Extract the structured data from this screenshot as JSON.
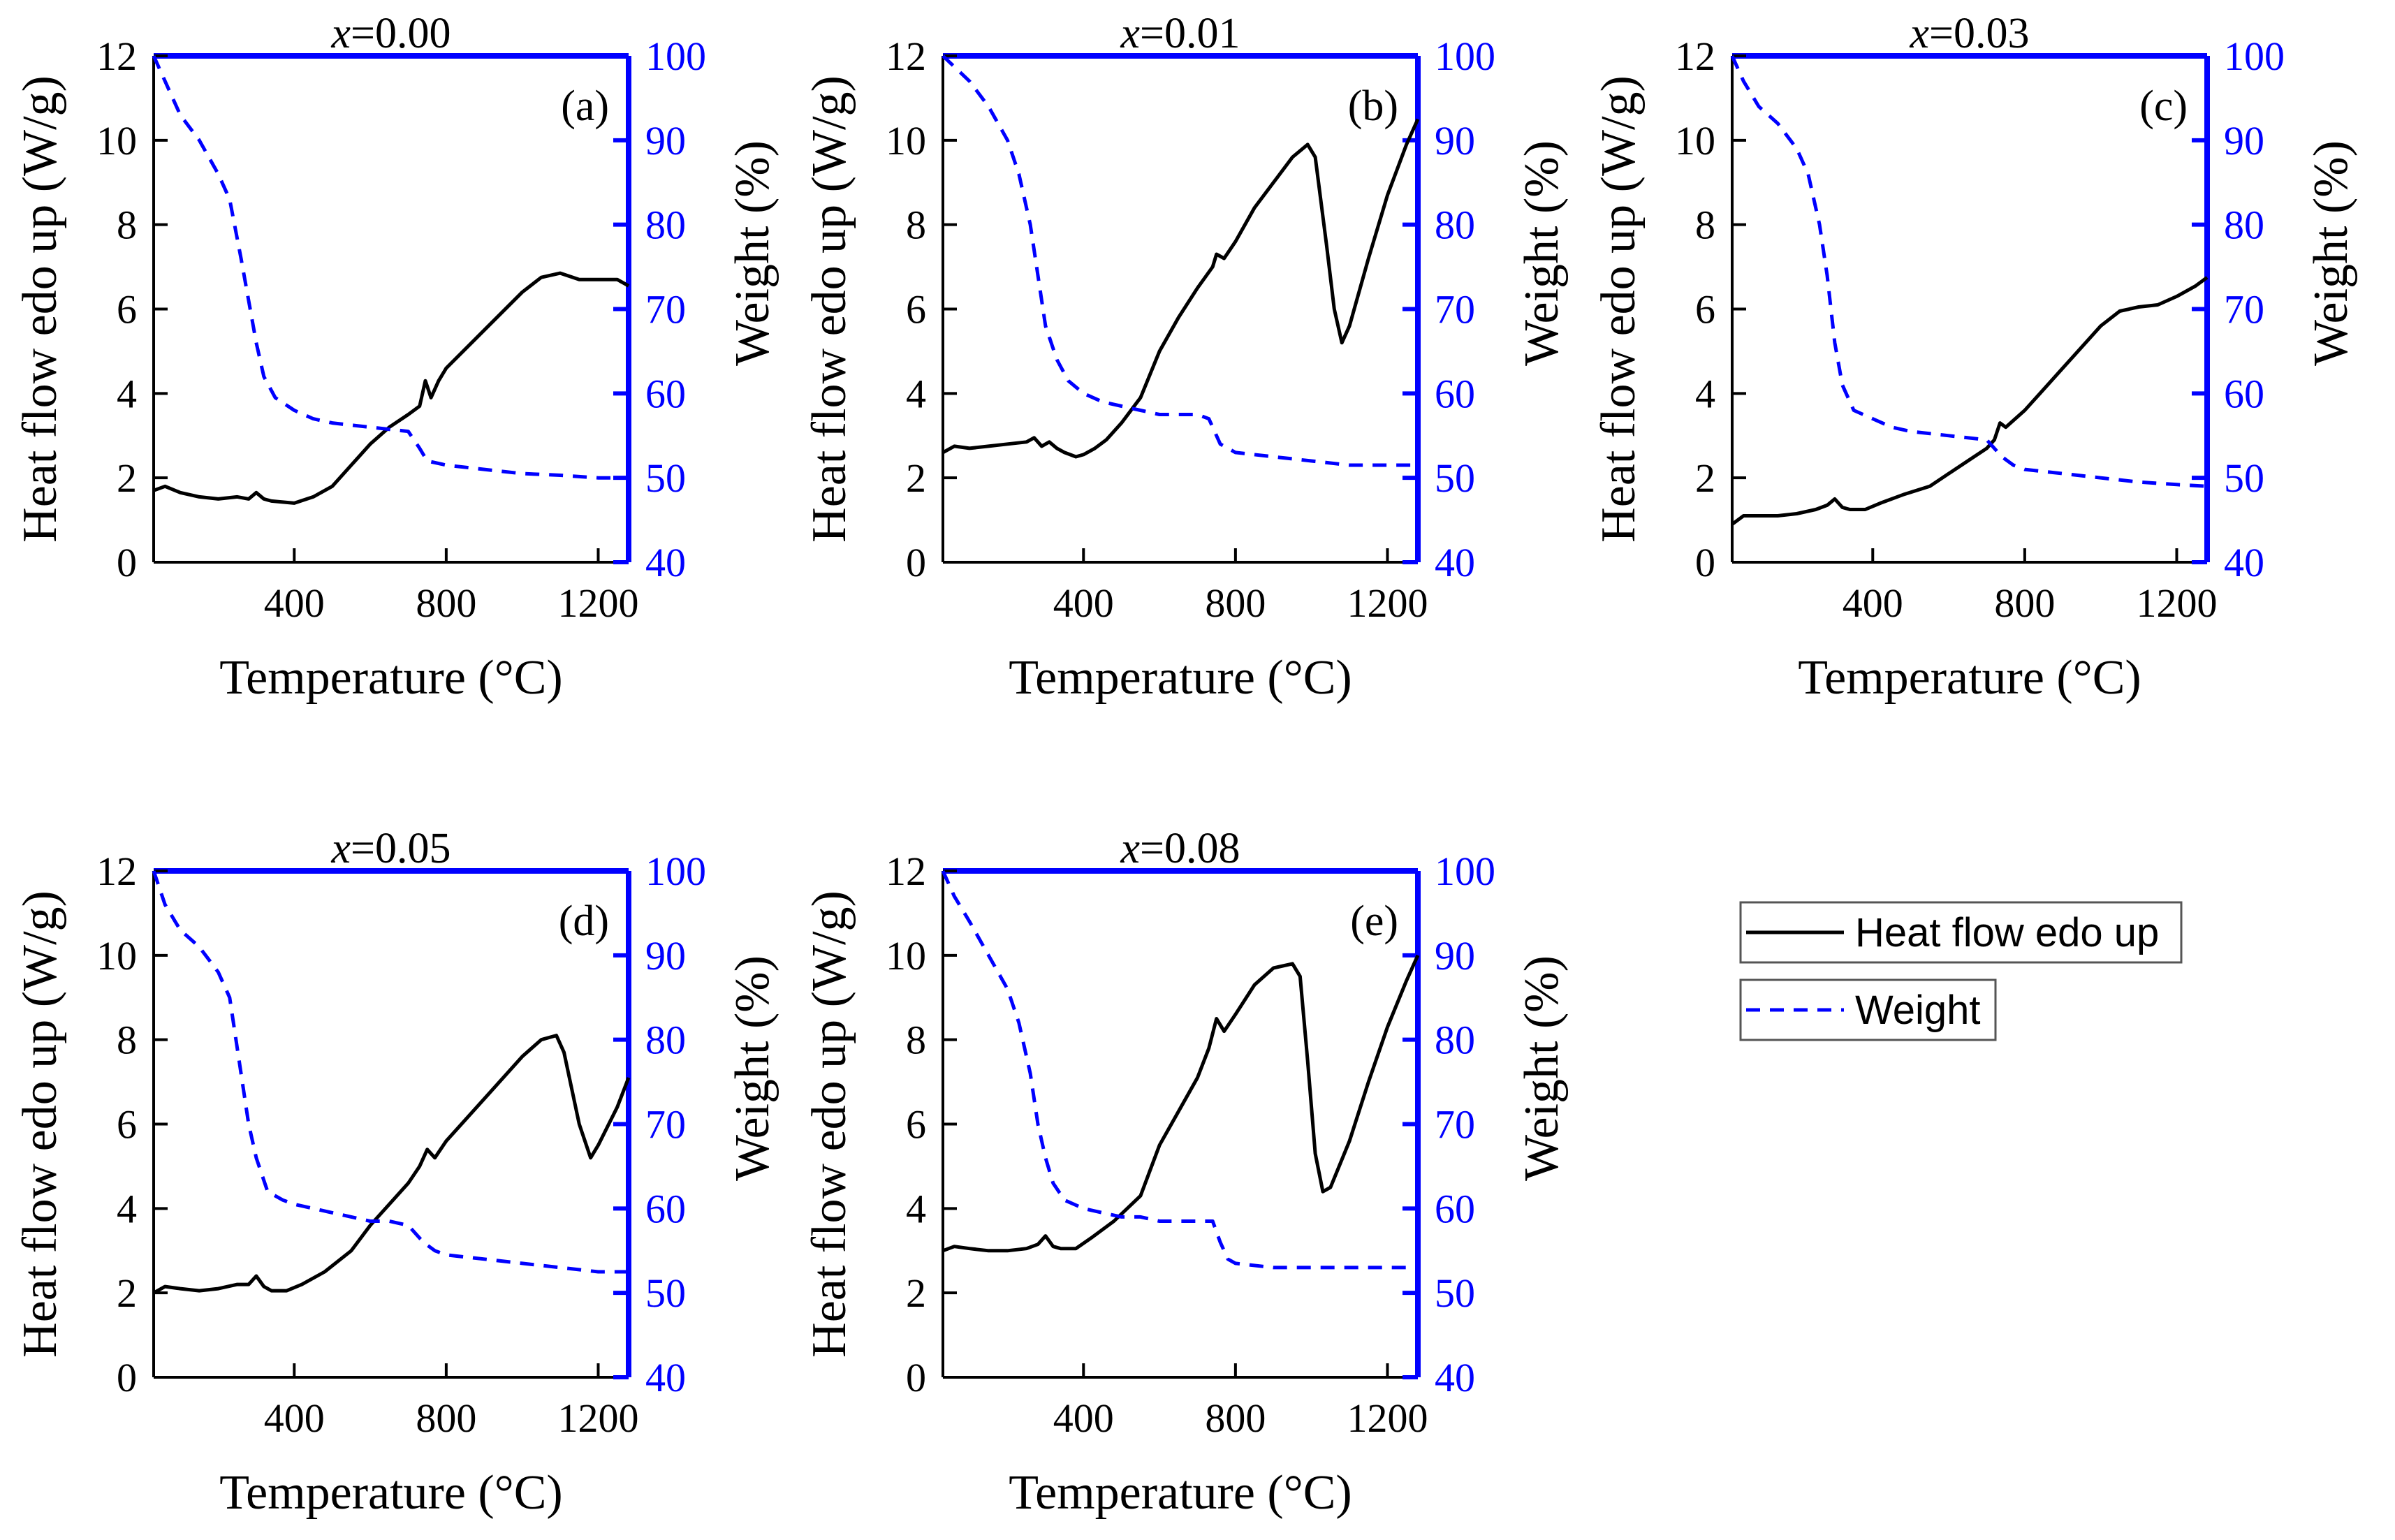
{
  "colors": {
    "heat": "#000000",
    "weight": "#0000ff",
    "background": "#ffffff"
  },
  "legend": {
    "heat_label": "Heat flow edo up",
    "weight_label": "Weight",
    "position": "right, beside lower row"
  },
  "chart_data": [
    {
      "type": "line",
      "panel_label": "(a)",
      "title": "x=0.00",
      "title_var": "x",
      "title_value": "=0.00",
      "xlabel": "Temperature (°C)",
      "ylabel_left": "Heat flow edo up (W/g)",
      "ylabel_right": "Weight (%)",
      "xlim": [
        30,
        1280
      ],
      "ylim_left": [
        0,
        12
      ],
      "ylim_right": [
        40,
        100
      ],
      "x_ticks": [
        400,
        800,
        1200
      ],
      "y_ticks_left": [
        0,
        2,
        4,
        6,
        8,
        10,
        12
      ],
      "y_ticks_right": [
        40,
        50,
        60,
        70,
        80,
        90,
        100
      ],
      "series": [
        {
          "name": "Heat flow edo up",
          "axis": "left",
          "style": "solid",
          "x": [
            30,
            60,
            100,
            150,
            200,
            250,
            280,
            300,
            320,
            340,
            400,
            450,
            500,
            550,
            600,
            650,
            700,
            730,
            745,
            760,
            780,
            800,
            900,
            1000,
            1050,
            1100,
            1150,
            1200,
            1250,
            1280
          ],
          "y": [
            1.7,
            1.8,
            1.65,
            1.55,
            1.5,
            1.55,
            1.5,
            1.65,
            1.5,
            1.45,
            1.4,
            1.55,
            1.8,
            2.3,
            2.8,
            3.2,
            3.5,
            3.7,
            4.3,
            3.9,
            4.3,
            4.6,
            5.5,
            6.4,
            6.75,
            6.85,
            6.7,
            6.7,
            6.7,
            6.55
          ]
        },
        {
          "name": "Weight",
          "axis": "right",
          "style": "dashed",
          "x": [
            30,
            100,
            150,
            200,
            230,
            260,
            280,
            300,
            320,
            350,
            400,
            450,
            500,
            600,
            700,
            730,
            750,
            800,
            900,
            1000,
            1100,
            1200,
            1280
          ],
          "y": [
            100,
            93,
            90,
            86,
            83,
            76,
            71,
            66,
            62,
            59.5,
            58,
            57,
            56.5,
            56,
            55.5,
            53.5,
            52,
            51.5,
            51,
            50.5,
            50.3,
            50,
            50
          ]
        }
      ]
    },
    {
      "type": "line",
      "panel_label": "(b)",
      "title": "x=0.01",
      "title_var": "x",
      "title_value": "=0.01",
      "xlabel": "Temperature (°C)",
      "ylabel_left": "Heat flow edo up (W/g)",
      "ylabel_right": "Weight (%)",
      "xlim": [
        30,
        1280
      ],
      "ylim_left": [
        0,
        12
      ],
      "ylim_right": [
        40,
        100
      ],
      "x_ticks": [
        400,
        800,
        1200
      ],
      "y_ticks_left": [
        0,
        2,
        4,
        6,
        8,
        10,
        12
      ],
      "y_ticks_right": [
        40,
        50,
        60,
        70,
        80,
        90,
        100
      ],
      "series": [
        {
          "name": "Heat flow edo up",
          "axis": "left",
          "style": "solid",
          "x": [
            30,
            60,
            100,
            150,
            200,
            250,
            270,
            290,
            310,
            330,
            350,
            380,
            400,
            430,
            460,
            500,
            550,
            600,
            650,
            700,
            740,
            750,
            770,
            800,
            850,
            900,
            950,
            990,
            1010,
            1040,
            1060,
            1080,
            1100,
            1150,
            1200,
            1250,
            1280
          ],
          "y": [
            2.6,
            2.75,
            2.7,
            2.75,
            2.8,
            2.85,
            2.95,
            2.75,
            2.85,
            2.7,
            2.6,
            2.5,
            2.55,
            2.7,
            2.9,
            3.3,
            3.9,
            5.0,
            5.8,
            6.5,
            7.0,
            7.3,
            7.2,
            7.6,
            8.4,
            9.0,
            9.6,
            9.9,
            9.6,
            7.5,
            6.0,
            5.2,
            5.6,
            7.2,
            8.7,
            9.9,
            10.5
          ]
        },
        {
          "name": "Weight",
          "axis": "right",
          "style": "dashed",
          "x": [
            30,
            100,
            150,
            200,
            230,
            260,
            280,
            300,
            330,
            360,
            400,
            450,
            500,
            550,
            600,
            650,
            700,
            730,
            760,
            800,
            900,
            1000,
            1100,
            1200,
            1280
          ],
          "y": [
            100,
            97,
            94,
            90,
            86,
            80,
            74,
            68,
            64,
            61.5,
            60,
            59,
            58.5,
            58,
            57.5,
            57.5,
            57.5,
            57,
            54,
            53,
            52.5,
            52,
            51.5,
            51.5,
            51.5
          ]
        }
      ]
    },
    {
      "type": "line",
      "panel_label": "(c)",
      "title": "x=0.03",
      "title_var": "x",
      "title_value": "=0.03",
      "xlabel": "Temperature (°C)",
      "ylabel_left": "Heat flow edo up (W/g)",
      "ylabel_right": "Weight (%)",
      "xlim": [
        30,
        1280
      ],
      "ylim_left": [
        0,
        12
      ],
      "ylim_right": [
        40,
        100
      ],
      "x_ticks": [
        400,
        800,
        1200
      ],
      "y_ticks_left": [
        0,
        2,
        4,
        6,
        8,
        10,
        12
      ],
      "y_ticks_right": [
        40,
        50,
        60,
        70,
        80,
        90,
        100
      ],
      "series": [
        {
          "name": "Heat flow edo up",
          "axis": "left",
          "style": "solid",
          "x": [
            30,
            60,
            100,
            150,
            200,
            250,
            280,
            300,
            320,
            340,
            380,
            420,
            480,
            550,
            600,
            650,
            700,
            720,
            735,
            750,
            800,
            900,
            1000,
            1050,
            1100,
            1150,
            1200,
            1250,
            1280
          ],
          "y": [
            0.9,
            1.1,
            1.1,
            1.1,
            1.15,
            1.25,
            1.35,
            1.5,
            1.3,
            1.25,
            1.25,
            1.4,
            1.6,
            1.8,
            2.1,
            2.4,
            2.7,
            2.9,
            3.3,
            3.2,
            3.6,
            4.6,
            5.6,
            5.95,
            6.05,
            6.1,
            6.3,
            6.55,
            6.75
          ]
        },
        {
          "name": "Weight",
          "axis": "right",
          "style": "dashed",
          "x": [
            30,
            60,
            100,
            150,
            200,
            230,
            260,
            280,
            300,
            320,
            350,
            400,
            450,
            500,
            600,
            700,
            740,
            770,
            800,
            900,
            1000,
            1100,
            1200,
            1280
          ],
          "y": [
            100,
            97,
            94,
            92,
            89,
            86,
            80,
            74,
            66,
            61,
            58,
            57,
            56,
            55.5,
            55,
            54.5,
            52.5,
            51.5,
            51,
            50.5,
            50,
            49.5,
            49.2,
            49
          ]
        }
      ]
    },
    {
      "type": "line",
      "panel_label": "(d)",
      "title": "x=0.05",
      "title_var": "x",
      "title_value": "=0.05",
      "xlabel": "Temperature (°C)",
      "ylabel_left": "Heat flow edo up (W/g)",
      "ylabel_right": "Weight (%)",
      "xlim": [
        30,
        1280
      ],
      "ylim_left": [
        0,
        12
      ],
      "ylim_right": [
        40,
        100
      ],
      "x_ticks": [
        400,
        800,
        1200
      ],
      "y_ticks_left": [
        0,
        2,
        4,
        6,
        8,
        10,
        12
      ],
      "y_ticks_right": [
        40,
        50,
        60,
        70,
        80,
        90,
        100
      ],
      "series": [
        {
          "name": "Heat flow edo up",
          "axis": "left",
          "style": "solid",
          "x": [
            30,
            60,
            100,
            150,
            200,
            250,
            280,
            300,
            320,
            340,
            380,
            420,
            480,
            550,
            600,
            650,
            700,
            730,
            750,
            770,
            800,
            900,
            1000,
            1050,
            1090,
            1110,
            1150,
            1180,
            1200,
            1250,
            1280
          ],
          "y": [
            2.0,
            2.15,
            2.1,
            2.05,
            2.1,
            2.2,
            2.2,
            2.4,
            2.15,
            2.05,
            2.05,
            2.2,
            2.5,
            3.0,
            3.6,
            4.1,
            4.6,
            5.0,
            5.4,
            5.2,
            5.6,
            6.6,
            7.6,
            8.0,
            8.1,
            7.7,
            6.0,
            5.2,
            5.5,
            6.4,
            7.1
          ]
        },
        {
          "name": "Weight",
          "axis": "right",
          "style": "dashed",
          "x": [
            30,
            60,
            100,
            150,
            200,
            230,
            260,
            280,
            300,
            330,
            370,
            400,
            450,
            500,
            550,
            600,
            650,
            700,
            740,
            770,
            800,
            900,
            1000,
            1100,
            1200,
            1280
          ],
          "y": [
            100,
            96,
            93,
            91,
            88,
            85,
            76,
            70,
            66,
            62,
            61,
            60.5,
            60,
            59.5,
            59,
            58.5,
            58.5,
            58,
            56,
            55,
            54.5,
            54,
            53.5,
            53,
            52.5,
            52.5
          ]
        }
      ]
    },
    {
      "type": "line",
      "panel_label": "(e)",
      "title": "x=0.08",
      "title_var": "x",
      "title_value": "=0.08",
      "xlabel": "Temperature (°C)",
      "ylabel_left": "Heat flow edo up (W/g)",
      "ylabel_right": "Weight (%)",
      "xlim": [
        30,
        1280
      ],
      "ylim_left": [
        0,
        12
      ],
      "ylim_right": [
        40,
        100
      ],
      "x_ticks": [
        400,
        800,
        1200
      ],
      "y_ticks_left": [
        0,
        2,
        4,
        6,
        8,
        10,
        12
      ],
      "y_ticks_right": [
        40,
        50,
        60,
        70,
        80,
        90,
        100
      ],
      "series": [
        {
          "name": "Heat flow edo up",
          "axis": "left",
          "style": "solid",
          "x": [
            30,
            60,
            100,
            150,
            200,
            250,
            280,
            300,
            320,
            340,
            380,
            420,
            480,
            550,
            600,
            650,
            700,
            730,
            750,
            770,
            800,
            850,
            900,
            950,
            970,
            990,
            1010,
            1030,
            1050,
            1100,
            1150,
            1200,
            1250,
            1280
          ],
          "y": [
            3.0,
            3.1,
            3.05,
            3.0,
            3.0,
            3.05,
            3.15,
            3.35,
            3.1,
            3.05,
            3.05,
            3.3,
            3.7,
            4.3,
            5.5,
            6.3,
            7.1,
            7.8,
            8.5,
            8.2,
            8.6,
            9.3,
            9.7,
            9.8,
            9.5,
            7.5,
            5.3,
            4.4,
            4.5,
            5.6,
            7.0,
            8.3,
            9.4,
            10.0
          ]
        },
        {
          "name": "Weight",
          "axis": "right",
          "style": "dashed",
          "x": [
            30,
            60,
            100,
            150,
            200,
            230,
            260,
            280,
            300,
            320,
            350,
            400,
            450,
            500,
            550,
            600,
            650,
            700,
            740,
            760,
            780,
            800,
            900,
            1000,
            1100,
            1200,
            1280
          ],
          "y": [
            100,
            97,
            94,
            90,
            86,
            82,
            76,
            70,
            66,
            63,
            61,
            60,
            59.5,
            59,
            59,
            58.5,
            58.5,
            58.5,
            58.5,
            56,
            54,
            53.5,
            53,
            53,
            53,
            53,
            53
          ]
        }
      ]
    }
  ]
}
